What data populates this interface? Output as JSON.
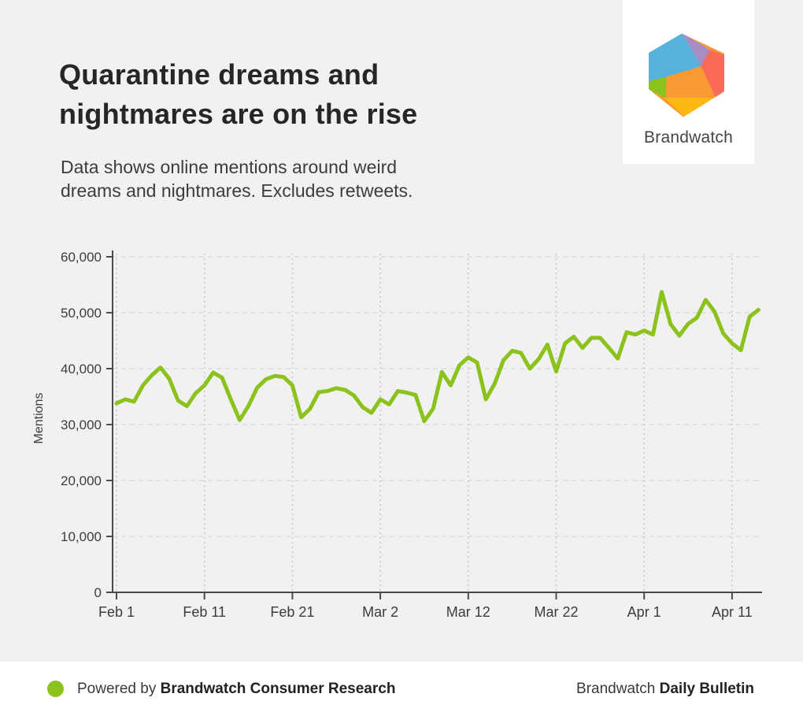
{
  "header": {
    "title": "Quarantine dreams and nightmares are on the rise",
    "subtitle": [
      "Data shows online mentions around weird",
      "dreams and nightmares. Excludes retweets."
    ]
  },
  "logo": {
    "label": "Brandwatch",
    "facet_colors": {
      "blue": "#56b2dc",
      "purple": "#a88dc5",
      "red": "#f96a59",
      "orange": "#f89a31",
      "yellow": "#fcb813",
      "green": "#8cc21d"
    }
  },
  "footer": {
    "powered_prefix": "Powered by ",
    "powered_bold": "Brandwatch Consumer Research",
    "bulletin_prefix": "Brandwatch ",
    "bulletin_bold": "Daily Bulletin"
  },
  "colors": {
    "background": "#f1f1f1",
    "panel_white": "#ffffff",
    "accent_green": "#8cc21d",
    "axis": "#4a4a4a",
    "h_grid": "#dcdcdc",
    "v_grid": "#c9c9c9"
  },
  "chart_data": {
    "type": "line",
    "title": "",
    "xlabel": "",
    "ylabel": "Mentions",
    "ylim": [
      0,
      60000
    ],
    "grid": true,
    "legend": "none",
    "line_color": "#8cc21d",
    "y_ticks": [
      {
        "value": 0,
        "label": "0"
      },
      {
        "value": 10000,
        "label": "10,000"
      },
      {
        "value": 20000,
        "label": "20,000"
      },
      {
        "value": 30000,
        "label": "30,000"
      },
      {
        "value": 40000,
        "label": "40,000"
      },
      {
        "value": 50000,
        "label": "50,000"
      },
      {
        "value": 60000,
        "label": "60,000"
      }
    ],
    "x_ticks": [
      {
        "day": 0,
        "label": "Feb 1"
      },
      {
        "day": 10,
        "label": "Feb 11"
      },
      {
        "day": 20,
        "label": "Feb 21"
      },
      {
        "day": 30,
        "label": "Mar 2"
      },
      {
        "day": 40,
        "label": "Mar 12"
      },
      {
        "day": 50,
        "label": "Mar 22"
      },
      {
        "day": 60,
        "label": "Apr 1"
      },
      {
        "day": 70,
        "label": "Apr 11"
      }
    ],
    "series": [
      {
        "name": "Mentions",
        "dates": [
          "Feb 1",
          "Feb 2",
          "Feb 3",
          "Feb 4",
          "Feb 5",
          "Feb 6",
          "Feb 7",
          "Feb 8",
          "Feb 9",
          "Feb 10",
          "Feb 11",
          "Feb 12",
          "Feb 13",
          "Feb 14",
          "Feb 15",
          "Feb 16",
          "Feb 17",
          "Feb 18",
          "Feb 19",
          "Feb 20",
          "Feb 21",
          "Feb 22",
          "Feb 23",
          "Feb 24",
          "Feb 25",
          "Feb 26",
          "Feb 27",
          "Feb 28",
          "Feb 29",
          "Mar 1",
          "Mar 2",
          "Mar 3",
          "Mar 4",
          "Mar 5",
          "Mar 6",
          "Mar 7",
          "Mar 8",
          "Mar 9",
          "Mar 10",
          "Mar 11",
          "Mar 12",
          "Mar 13",
          "Mar 14",
          "Mar 15",
          "Mar 16",
          "Mar 17",
          "Mar 18",
          "Mar 19",
          "Mar 20",
          "Mar 21",
          "Mar 22",
          "Mar 23",
          "Mar 24",
          "Mar 25",
          "Mar 26",
          "Mar 27",
          "Mar 28",
          "Mar 29",
          "Mar 30",
          "Mar 31",
          "Apr 1",
          "Apr 2",
          "Apr 3",
          "Apr 4",
          "Apr 5",
          "Apr 6",
          "Apr 7",
          "Apr 8",
          "Apr 9",
          "Apr 10",
          "Apr 11",
          "Apr 12",
          "Apr 13",
          "Apr 14"
        ],
        "values": [
          33800,
          34500,
          34100,
          37000,
          38800,
          40200,
          38200,
          34300,
          33300,
          35600,
          37000,
          39300,
          38400,
          34500,
          30800,
          33300,
          36600,
          38100,
          38700,
          38500,
          37000,
          31300,
          32800,
          35800,
          36000,
          36500,
          36200,
          35200,
          33100,
          32100,
          34500,
          33600,
          36000,
          35700,
          35300,
          30600,
          32800,
          39400,
          37000,
          40600,
          42000,
          41100,
          34500,
          37300,
          41500,
          43200,
          42800,
          40000,
          41700,
          44300,
          39500,
          44500,
          45700,
          43700,
          45500,
          45500,
          43700,
          41800,
          46500,
          46100,
          46800,
          46100,
          53700,
          48000,
          45900,
          48000,
          49100,
          52300,
          50200,
          46300,
          44500,
          43300,
          49300,
          50500
        ]
      }
    ]
  }
}
